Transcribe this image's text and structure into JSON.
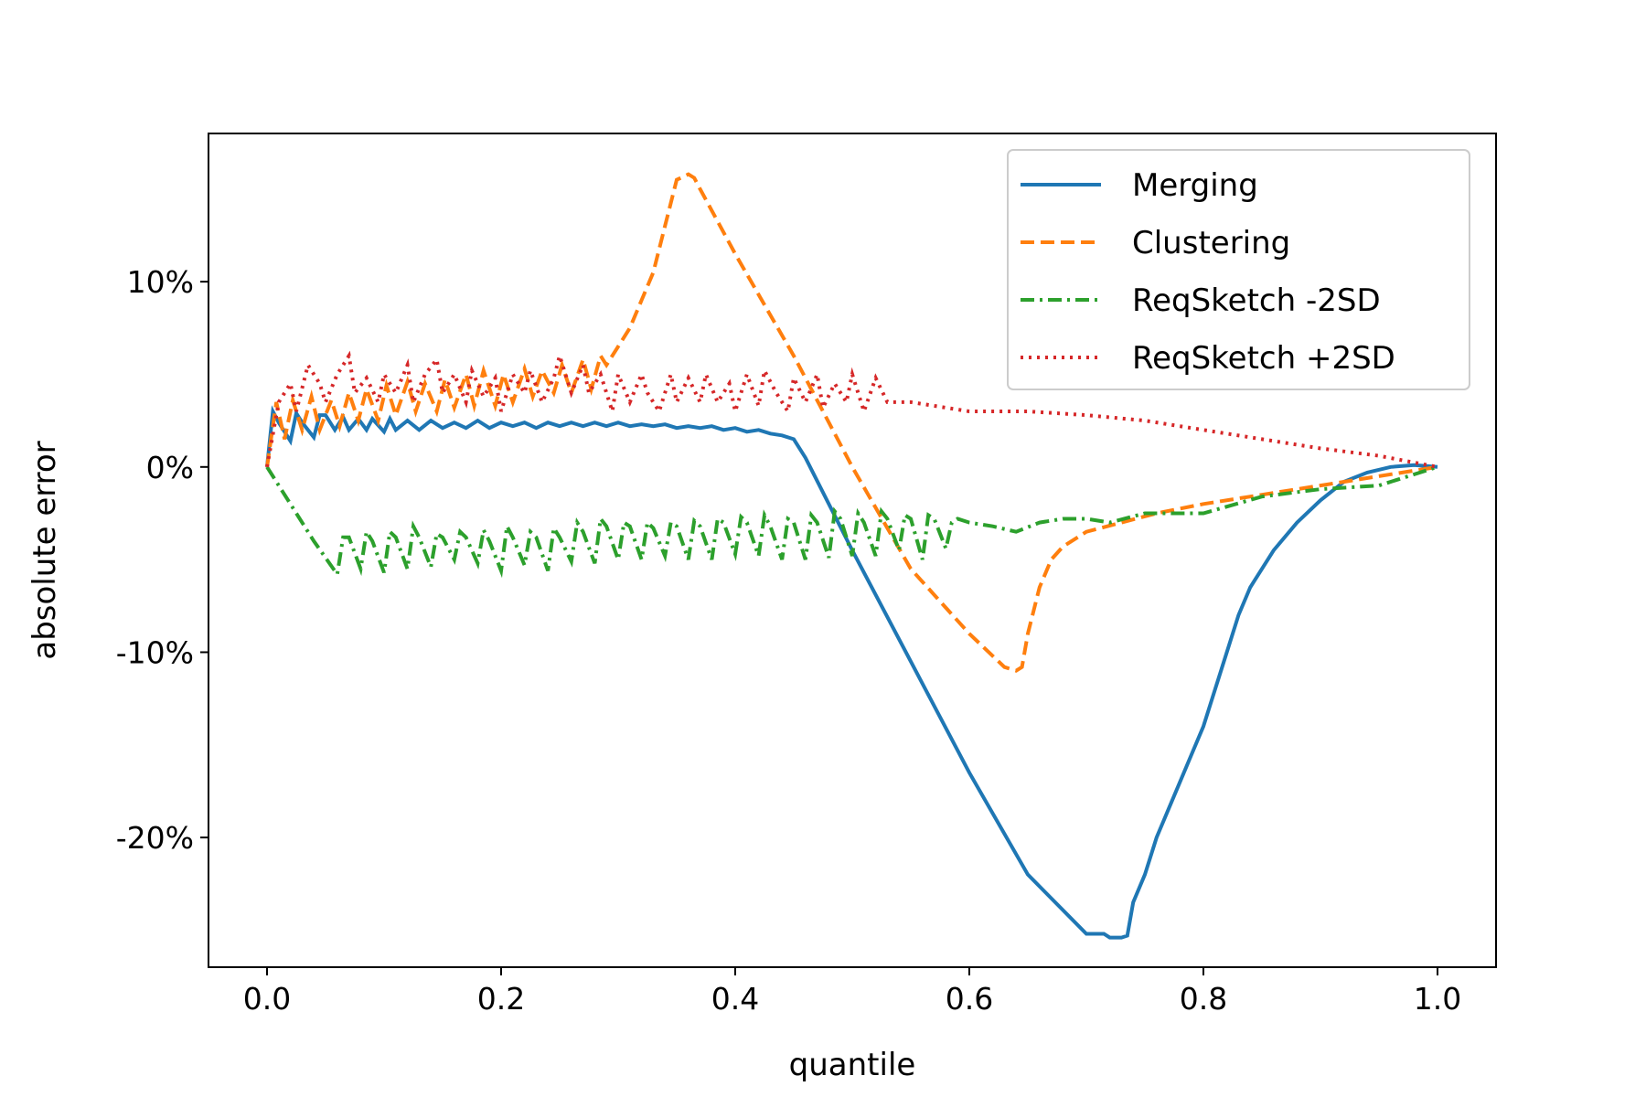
{
  "chart_data": {
    "type": "line",
    "title": "",
    "xlabel": "quantile",
    "ylabel": "absolute error",
    "xlim": [
      -0.05,
      1.05
    ],
    "ylim": [
      -27,
      18
    ],
    "xticks": [
      0.0,
      0.2,
      0.4,
      0.6,
      0.8,
      1.0
    ],
    "xtick_labels": [
      "0.0",
      "0.2",
      "0.4",
      "0.6",
      "0.8",
      "1.0"
    ],
    "yticks": [
      10,
      0,
      -10,
      -20
    ],
    "ytick_labels": [
      "10%",
      "0%",
      "-10%",
      "-20%"
    ],
    "grid": false,
    "legend_position": "top-right",
    "series": [
      {
        "name": "Merging",
        "color": "#1f77b4",
        "dash": "solid",
        "x": [
          0,
          0.005,
          0.01,
          0.02,
          0.025,
          0.03,
          0.04,
          0.045,
          0.05,
          0.058,
          0.065,
          0.07,
          0.078,
          0.085,
          0.09,
          0.1,
          0.105,
          0.11,
          0.12,
          0.13,
          0.14,
          0.15,
          0.16,
          0.17,
          0.18,
          0.19,
          0.2,
          0.21,
          0.22,
          0.23,
          0.24,
          0.25,
          0.26,
          0.27,
          0.28,
          0.29,
          0.3,
          0.31,
          0.32,
          0.33,
          0.34,
          0.35,
          0.36,
          0.37,
          0.38,
          0.39,
          0.4,
          0.41,
          0.42,
          0.43,
          0.44,
          0.45,
          0.46,
          0.5,
          0.55,
          0.6,
          0.65,
          0.7,
          0.715,
          0.72,
          0.73,
          0.735,
          0.74,
          0.75,
          0.76,
          0.77,
          0.78,
          0.79,
          0.8,
          0.81,
          0.82,
          0.83,
          0.84,
          0.86,
          0.88,
          0.9,
          0.92,
          0.94,
          0.96,
          0.98,
          1.0
        ],
        "y": [
          0,
          3.0,
          2.4,
          1.4,
          2.9,
          2.4,
          1.6,
          2.8,
          2.8,
          2.0,
          2.7,
          2.0,
          2.6,
          2.0,
          2.6,
          1.9,
          2.6,
          2.0,
          2.5,
          2.0,
          2.5,
          2.1,
          2.4,
          2.1,
          2.5,
          2.1,
          2.4,
          2.2,
          2.4,
          2.1,
          2.4,
          2.2,
          2.4,
          2.2,
          2.4,
          2.2,
          2.4,
          2.2,
          2.3,
          2.2,
          2.3,
          2.1,
          2.2,
          2.1,
          2.2,
          2.0,
          2.1,
          1.9,
          2.0,
          1.8,
          1.7,
          1.5,
          0.5,
          -4.5,
          -10.5,
          -16.5,
          -22.0,
          -25.2,
          -25.2,
          -25.4,
          -25.4,
          -25.3,
          -23.5,
          -22.0,
          -20.0,
          -18.5,
          -17.0,
          -15.5,
          -14.0,
          -12.0,
          -10.0,
          -8.0,
          -6.5,
          -4.5,
          -3.0,
          -1.8,
          -0.8,
          -0.3,
          0.0,
          0.1,
          0.0
        ]
      },
      {
        "name": "Clustering",
        "color": "#ff7f0e",
        "dash": "dashed",
        "x": [
          0,
          0.008,
          0.015,
          0.022,
          0.03,
          0.038,
          0.045,
          0.055,
          0.062,
          0.07,
          0.078,
          0.085,
          0.095,
          0.102,
          0.11,
          0.12,
          0.127,
          0.135,
          0.145,
          0.152,
          0.16,
          0.17,
          0.177,
          0.185,
          0.195,
          0.202,
          0.21,
          0.22,
          0.227,
          0.235,
          0.245,
          0.252,
          0.26,
          0.27,
          0.277,
          0.285,
          0.29,
          0.3,
          0.31,
          0.32,
          0.33,
          0.34,
          0.35,
          0.36,
          0.365,
          0.37,
          0.4,
          0.45,
          0.5,
          0.55,
          0.6,
          0.63,
          0.64,
          0.645,
          0.65,
          0.66,
          0.67,
          0.68,
          0.7,
          0.73,
          0.76,
          0.8,
          0.85,
          0.9,
          0.95,
          1.0
        ],
        "y": [
          0,
          3.5,
          1.5,
          3.6,
          2.0,
          3.8,
          2.0,
          3.6,
          2.2,
          4.0,
          2.5,
          4.2,
          2.5,
          4.4,
          2.8,
          4.6,
          3.0,
          4.5,
          3.0,
          4.7,
          3.2,
          5.0,
          3.3,
          5.2,
          3.3,
          5.0,
          3.5,
          5.3,
          3.8,
          5.2,
          4.0,
          5.5,
          4.0,
          5.8,
          4.2,
          6.0,
          5.5,
          6.5,
          7.5,
          9.0,
          10.5,
          13.0,
          15.5,
          15.8,
          15.6,
          15.0,
          11.5,
          6.0,
          0.0,
          -5.5,
          -9.0,
          -10.8,
          -11.0,
          -10.8,
          -9.0,
          -6.5,
          -5.0,
          -4.3,
          -3.5,
          -3.0,
          -2.5,
          -2.0,
          -1.5,
          -1.0,
          -0.5,
          0.0
        ]
      },
      {
        "name": "ReqSketch -2SD",
        "color": "#2ca02c",
        "dash": "dashdot",
        "x": [
          0,
          0.02,
          0.04,
          0.06,
          0.065,
          0.07,
          0.08,
          0.085,
          0.09,
          0.1,
          0.105,
          0.11,
          0.12,
          0.125,
          0.13,
          0.14,
          0.145,
          0.15,
          0.16,
          0.165,
          0.17,
          0.18,
          0.185,
          0.19,
          0.2,
          0.205,
          0.21,
          0.22,
          0.225,
          0.23,
          0.24,
          0.245,
          0.25,
          0.26,
          0.265,
          0.27,
          0.28,
          0.285,
          0.29,
          0.3,
          0.305,
          0.31,
          0.32,
          0.325,
          0.33,
          0.34,
          0.345,
          0.35,
          0.36,
          0.365,
          0.37,
          0.38,
          0.385,
          0.39,
          0.4,
          0.405,
          0.41,
          0.42,
          0.425,
          0.43,
          0.44,
          0.445,
          0.45,
          0.46,
          0.465,
          0.47,
          0.48,
          0.485,
          0.49,
          0.5,
          0.505,
          0.51,
          0.52,
          0.525,
          0.53,
          0.54,
          0.545,
          0.55,
          0.56,
          0.565,
          0.57,
          0.58,
          0.585,
          0.59,
          0.6,
          0.62,
          0.64,
          0.66,
          0.68,
          0.7,
          0.72,
          0.75,
          0.8,
          0.85,
          0.9,
          0.95,
          1.0
        ],
        "y": [
          0,
          -2.0,
          -4.0,
          -5.8,
          -3.8,
          -3.8,
          -5.5,
          -3.5,
          -4.0,
          -5.7,
          -3.5,
          -3.8,
          -5.5,
          -3.2,
          -3.8,
          -5.4,
          -3.6,
          -3.8,
          -5.0,
          -3.5,
          -3.8,
          -5.2,
          -3.4,
          -4.0,
          -5.6,
          -3.2,
          -3.8,
          -5.3,
          -3.5,
          -3.8,
          -5.6,
          -3.3,
          -3.8,
          -5.1,
          -3.0,
          -3.5,
          -5.2,
          -2.8,
          -3.2,
          -5.0,
          -3.0,
          -3.2,
          -5.0,
          -3.0,
          -3.3,
          -4.8,
          -3.0,
          -3.2,
          -5.0,
          -2.9,
          -3.2,
          -5.0,
          -2.8,
          -3.0,
          -4.7,
          -2.7,
          -3.0,
          -4.8,
          -2.6,
          -3.2,
          -5.0,
          -2.8,
          -3.0,
          -5.0,
          -2.6,
          -3.0,
          -4.9,
          -2.4,
          -2.8,
          -4.8,
          -2.5,
          -3.0,
          -4.8,
          -2.4,
          -2.8,
          -4.5,
          -2.6,
          -2.8,
          -5.0,
          -2.6,
          -2.8,
          -4.4,
          -3.0,
          -2.8,
          -3.0,
          -3.2,
          -3.5,
          -3.0,
          -2.8,
          -2.8,
          -3.0,
          -2.5,
          -2.5,
          -1.6,
          -1.2,
          -1.0,
          0.0
        ]
      },
      {
        "name": "ReqSketch +2SD",
        "color": "#d62728",
        "dash": "dotted",
        "x": [
          0,
          0.01,
          0.02,
          0.025,
          0.035,
          0.045,
          0.05,
          0.06,
          0.07,
          0.075,
          0.085,
          0.095,
          0.1,
          0.11,
          0.12,
          0.125,
          0.135,
          0.145,
          0.15,
          0.16,
          0.17,
          0.175,
          0.185,
          0.195,
          0.2,
          0.21,
          0.22,
          0.225,
          0.235,
          0.245,
          0.25,
          0.26,
          0.27,
          0.275,
          0.285,
          0.295,
          0.3,
          0.31,
          0.32,
          0.325,
          0.335,
          0.345,
          0.35,
          0.36,
          0.37,
          0.375,
          0.385,
          0.395,
          0.4,
          0.41,
          0.42,
          0.425,
          0.435,
          0.445,
          0.45,
          0.46,
          0.47,
          0.475,
          0.485,
          0.495,
          0.5,
          0.51,
          0.52,
          0.53,
          0.55,
          0.6,
          0.65,
          0.7,
          0.75,
          0.8,
          0.85,
          0.9,
          0.95,
          1.0
        ],
        "y": [
          0,
          3.5,
          4.5,
          3.0,
          5.5,
          4.5,
          3.5,
          5.0,
          6.0,
          4.0,
          4.8,
          3.5,
          5.0,
          4.0,
          5.5,
          3.5,
          5.0,
          5.8,
          4.0,
          5.0,
          3.5,
          5.2,
          3.8,
          4.8,
          3.0,
          5.0,
          4.0,
          5.2,
          3.5,
          4.8,
          6.0,
          4.0,
          5.5,
          4.0,
          5.0,
          3.0,
          5.0,
          3.5,
          5.0,
          4.0,
          3.0,
          5.0,
          3.5,
          4.8,
          3.5,
          5.0,
          3.5,
          4.5,
          3.0,
          5.0,
          3.3,
          5.2,
          4.0,
          3.0,
          4.8,
          3.5,
          5.0,
          3.2,
          4.5,
          3.5,
          5.0,
          3.0,
          4.8,
          3.5,
          3.5,
          3.0,
          3.0,
          2.8,
          2.5,
          2.0,
          1.5,
          1.0,
          0.6,
          0.0
        ]
      }
    ]
  }
}
